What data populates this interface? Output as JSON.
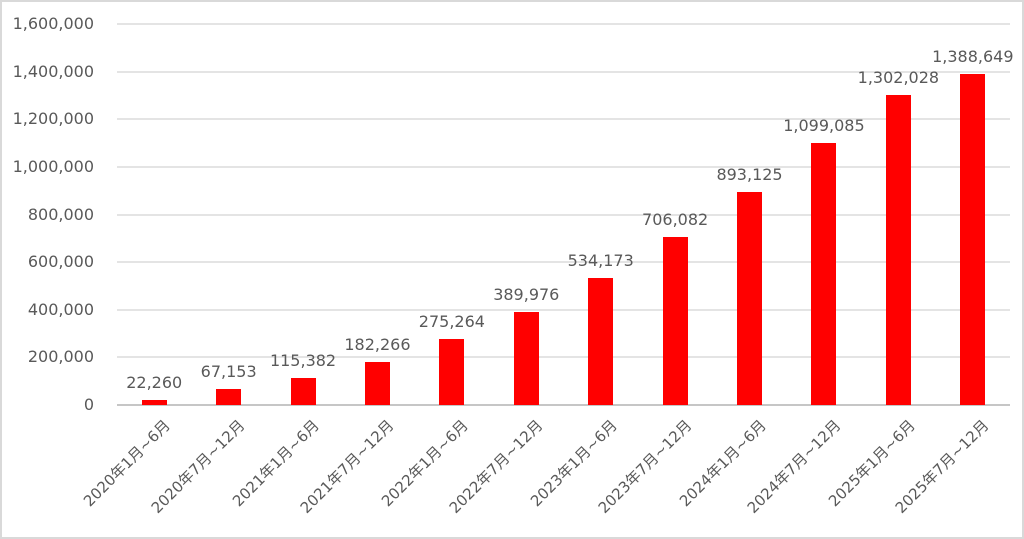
{
  "chart_data": {
    "type": "bar",
    "title": "",
    "xlabel": "",
    "ylabel": "",
    "categories": [
      "2020年1月~6月",
      "2020年7月~12月",
      "2021年1月~6月",
      "2021年7月~12月",
      "2022年1月~6月",
      "2022年7月~12月",
      "2023年1月~6月",
      "2023年7月~12月",
      "2024年1月~6月",
      "2024年7月~12月",
      "2025年1月~6月",
      "2025年7月~12月"
    ],
    "values": [
      22260,
      67153,
      115382,
      182266,
      275264,
      389976,
      534173,
      706082,
      893125,
      1099085,
      1302028,
      1388649
    ],
    "data_labels": [
      "22,260",
      "67,153",
      "115,382",
      "182,266",
      "275,264",
      "389,976",
      "534,173",
      "706,082",
      "893,125",
      "1,099,085",
      "1,302,028",
      "1,388,649"
    ],
    "y_tick_labels": [
      "1,600,000",
      "1,400,000",
      "1,200,000",
      "1,000,000",
      "800,000",
      "600,000",
      "400,000",
      "200,000",
      "0"
    ],
    "y_tick_values": [
      1600000,
      1400000,
      1200000,
      1000000,
      800000,
      600000,
      400000,
      200000,
      0
    ],
    "ylim": [
      0,
      1600000
    ],
    "y_step": 200000,
    "grid": true,
    "legend_position": "none",
    "x_label_rotation_deg": 45,
    "colors": {
      "bar": "#ff0000",
      "text": "#595959",
      "gridline": "#e4e4e4",
      "axis_line": "#c6c6c6",
      "frame_border": "#d9d9d9",
      "background": "#ffffff"
    }
  }
}
